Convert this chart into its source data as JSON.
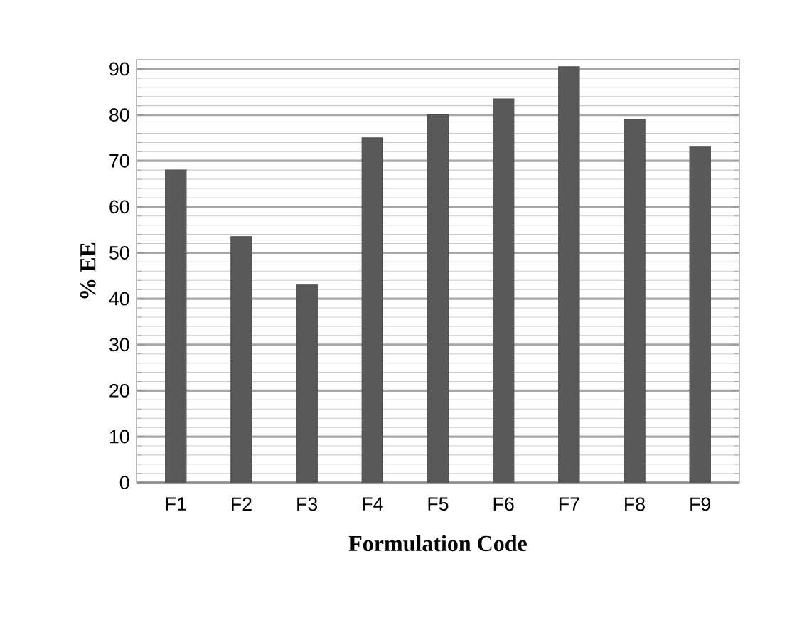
{
  "chart_data": {
    "type": "bar",
    "xlabel": "Formulation Code",
    "ylabel": "% EE",
    "categories": [
      "F1",
      "F2",
      "F3",
      "F4",
      "F5",
      "F6",
      "F7",
      "F8",
      "F9"
    ],
    "values": [
      68,
      53.5,
      43,
      75,
      80,
      83.5,
      90.5,
      79,
      73
    ],
    "color": "#595959",
    "ylim": [
      0,
      92
    ],
    "yticks": [
      0,
      10,
      20,
      30,
      40,
      50,
      60,
      70,
      80,
      90
    ],
    "grid": "y"
  }
}
